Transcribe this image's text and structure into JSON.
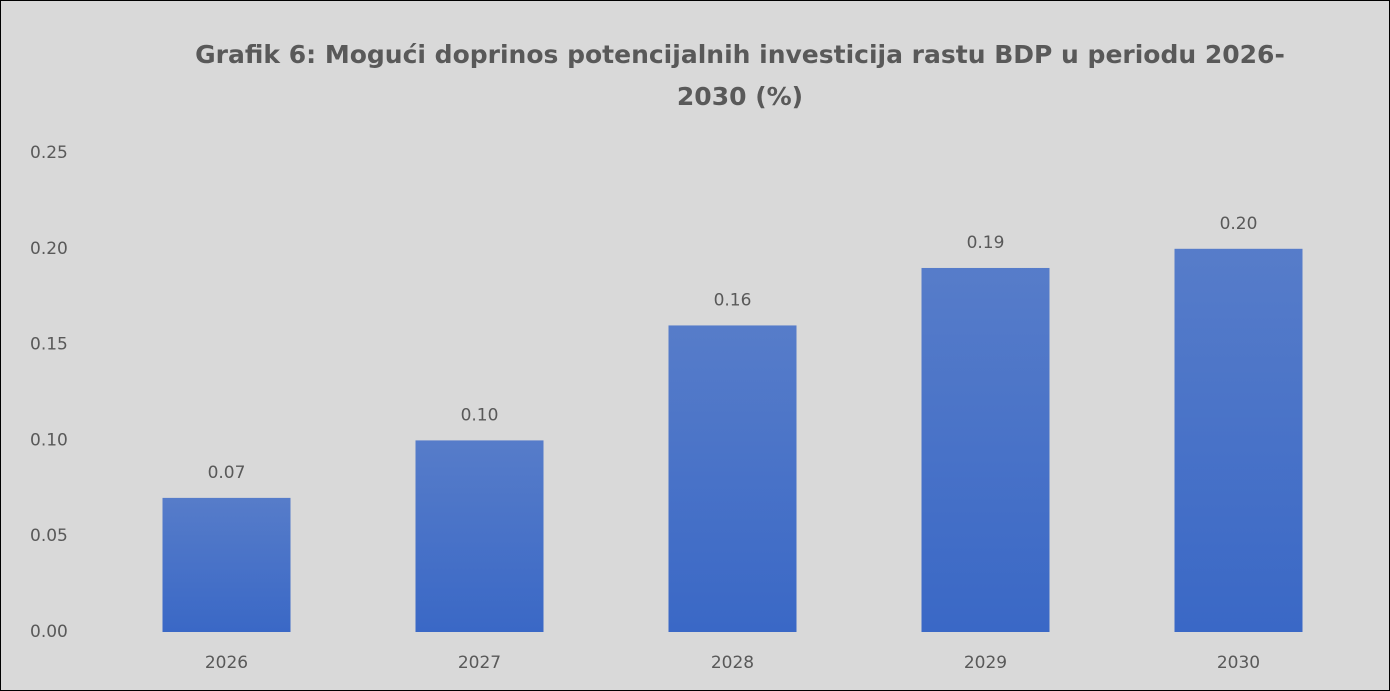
{
  "chart_data": {
    "type": "bar",
    "title": "Grafik 6: Mogući doprinos potencijalnih investicija rastu BDP u periodu 2026-2030 (%)",
    "categories": [
      "2026",
      "2027",
      "2028",
      "2029",
      "2030"
    ],
    "values": [
      0.07,
      0.1,
      0.16,
      0.19,
      0.2
    ],
    "value_labels": [
      "0.07",
      "0.10",
      "0.16",
      "0.19",
      "0.20"
    ],
    "color": "#3a68c6",
    "ylim": [
      0,
      0.25
    ],
    "yticks": [
      {
        "value": 0,
        "label": "0.00"
      },
      0.05,
      {
        "value": 0.1,
        "label": "0.10"
      },
      0.15,
      {
        "value": 0.2,
        "label": "0.20"
      },
      0.25
    ],
    "grid": false
  }
}
